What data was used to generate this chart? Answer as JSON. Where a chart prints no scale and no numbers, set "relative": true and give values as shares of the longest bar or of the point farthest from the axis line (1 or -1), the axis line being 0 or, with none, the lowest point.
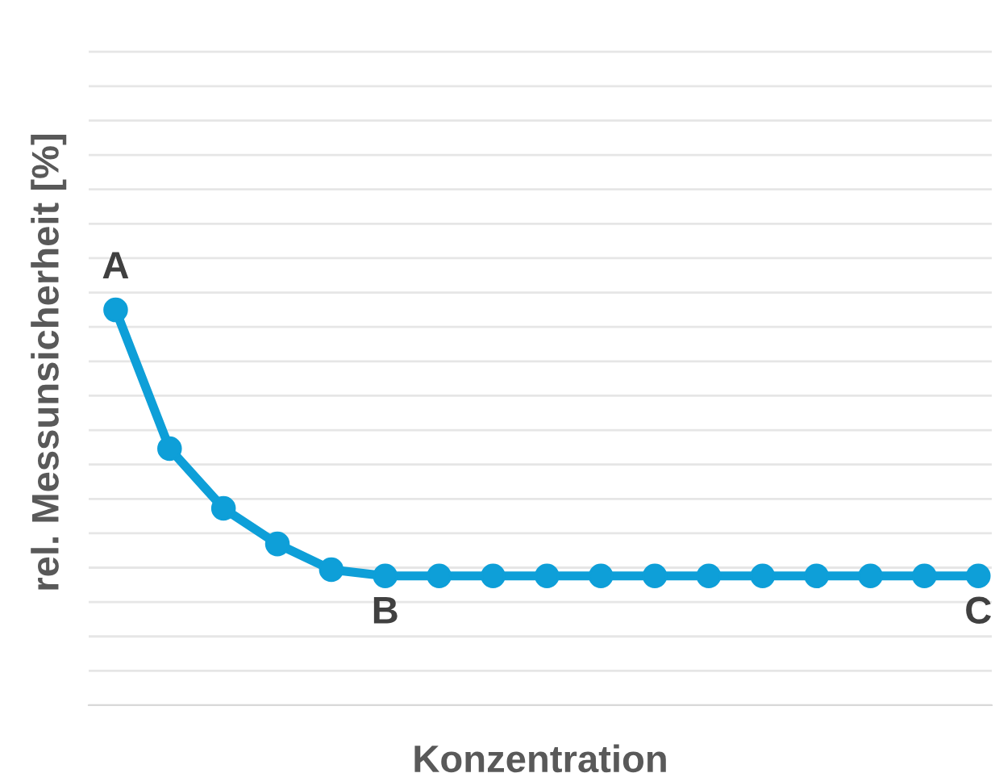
{
  "chart_data": {
    "type": "line",
    "xlabel": "Konzentration",
    "ylabel": "rel. Messunsicherheit [%]",
    "relative": true,
    "categories": [
      null,
      null,
      null,
      null,
      null,
      null,
      null,
      null,
      null,
      null,
      null,
      null,
      null,
      null,
      null,
      null,
      null
    ],
    "series": [
      {
        "color": "#0e9fd8",
        "values": [
          1,
          0.649,
          0.498,
          0.408,
          0.343,
          0.327,
          0.327,
          0.327,
          0.327,
          0.327,
          0.327,
          0.327,
          0.327,
          0.327,
          0.327,
          0.327,
          0.327
        ]
      }
    ],
    "marker": "circle",
    "line_style": "solid",
    "grid": "y",
    "legend": false,
    "annotations": [
      "A",
      "B",
      "C"
    ]
  }
}
